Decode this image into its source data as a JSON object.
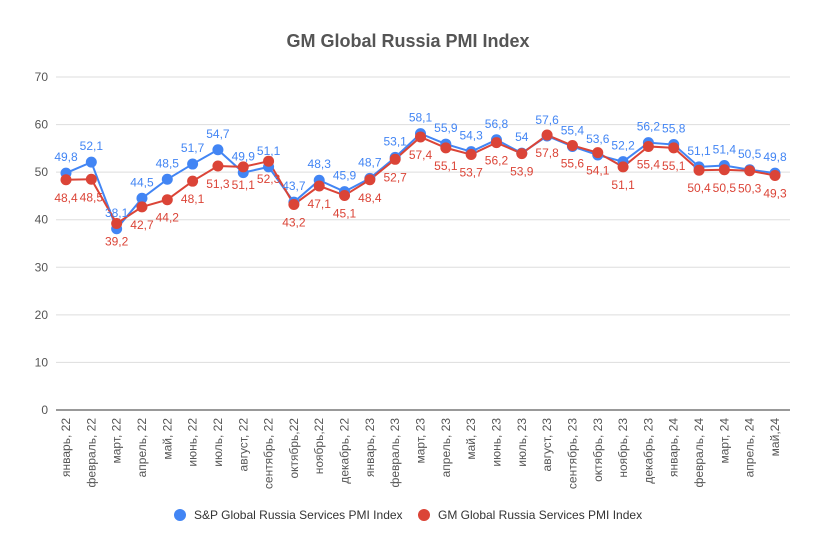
{
  "chart_data": {
    "type": "line",
    "title": "GM Global Russia PMI Index",
    "xlabel": "",
    "ylabel": "",
    "ylim": [
      0,
      70
    ],
    "yticks": [
      0,
      10,
      20,
      30,
      40,
      50,
      60,
      70
    ],
    "grid": true,
    "legend_position": "bottom",
    "categories": [
      "январь, 22",
      "февраль, 22",
      "март, 22",
      "апрель, 22",
      "май, 22",
      "июнь, 22",
      "июль, 22",
      "август, 22",
      "сентябрь, 22",
      "октябрь,22",
      "ноябрь,22",
      "декабрь, 22",
      "январь, 23",
      "февраль, 23",
      "март, 23",
      "апрель, 23",
      "май, 23",
      "июнь, 23",
      "июль, 23",
      "август, 23",
      "сентябрь, 23",
      "октябрь, 23",
      "ноябрь, 23",
      "декабрь, 23",
      "январь, 24",
      "февраль, 24",
      "март, 24",
      "апрель, 24",
      "май,24"
    ],
    "series": [
      {
        "name": "S&P Global Russia Services PMI Index",
        "color": "#4285f4",
        "label_pos": "above",
        "values": [
          49.8,
          52.1,
          38.1,
          44.5,
          48.5,
          51.7,
          54.7,
          49.9,
          51.1,
          43.7,
          48.3,
          45.9,
          48.7,
          53.1,
          58.1,
          55.9,
          54.3,
          56.8,
          54,
          57.6,
          55.4,
          53.6,
          52.2,
          56.2,
          55.8,
          51.1,
          51.4,
          50.5,
          49.8
        ]
      },
      {
        "name": "GM Global Russia Services PMI Index",
        "color": "#db4437",
        "label_pos": "below",
        "values": [
          48.4,
          48.5,
          39.2,
          42.7,
          44.2,
          48.1,
          51.3,
          51.1,
          52.3,
          43.2,
          47.1,
          45.1,
          48.4,
          52.7,
          57.4,
          55.1,
          53.7,
          56.2,
          53.9,
          57.8,
          55.6,
          54.1,
          51.1,
          55.4,
          55.1,
          50.4,
          50.5,
          50.3,
          49.3
        ]
      }
    ]
  }
}
